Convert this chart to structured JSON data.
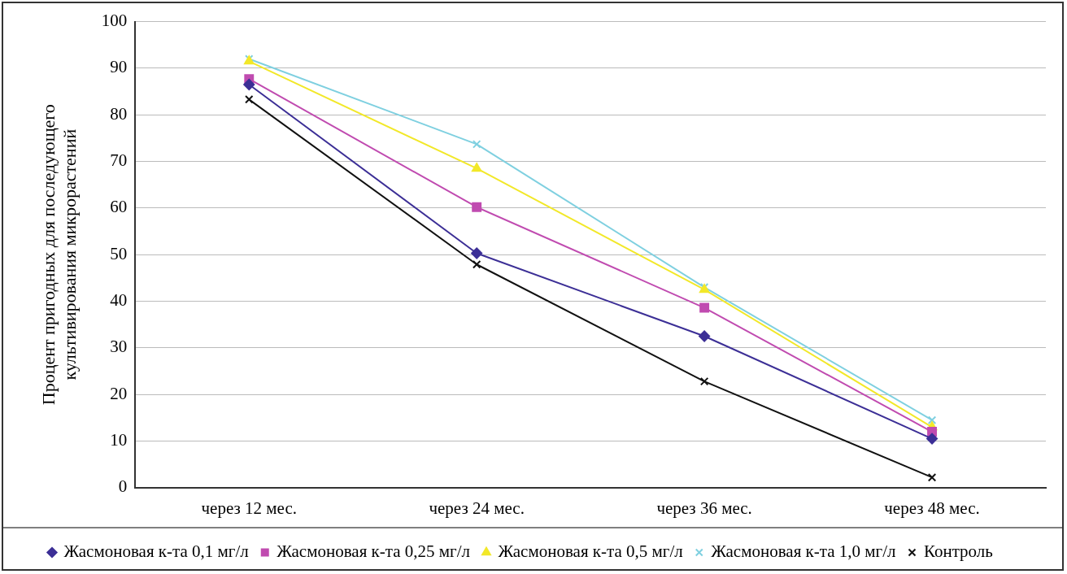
{
  "chart_data": {
    "type": "line",
    "ylabel": "Процент пригодных для последующего\nкультивирования микрорастений",
    "categories": [
      "через 12 мес.",
      "через 24 мес.",
      "через 36 мес.",
      "через 48 мес."
    ],
    "series": [
      {
        "name": "Жасмоновая к-та 0,1 мг/л",
        "color": "#3c2f96",
        "marker": "diamond",
        "values": [
          86.5,
          50.3,
          32.5,
          10.5
        ]
      },
      {
        "name": "Жасмоновая к-та 0,25 мг/л",
        "color": "#c04bb0",
        "marker": "square",
        "values": [
          87.7,
          60.2,
          38.6,
          12
        ]
      },
      {
        "name": "Жасмоновая к-та 0,5 мг/л",
        "color": "#f2e829",
        "marker": "triangle",
        "values": [
          91.5,
          68.5,
          42.5,
          13
        ]
      },
      {
        "name": "Жасмоновая к-та 1,0 мг/л",
        "color": "#7fd0e0",
        "marker": "cross",
        "values": [
          92,
          73.7,
          43,
          14.5
        ]
      },
      {
        "name": "Контроль",
        "color": "#111111",
        "marker": "cross",
        "values": [
          83.3,
          47.9,
          22.8,
          2.2
        ]
      }
    ],
    "ylim": [
      0,
      100
    ],
    "yticks": [
      0,
      10,
      20,
      30,
      40,
      50,
      60,
      70,
      80,
      90,
      100
    ],
    "grid": "y",
    "legend": "bottom"
  }
}
